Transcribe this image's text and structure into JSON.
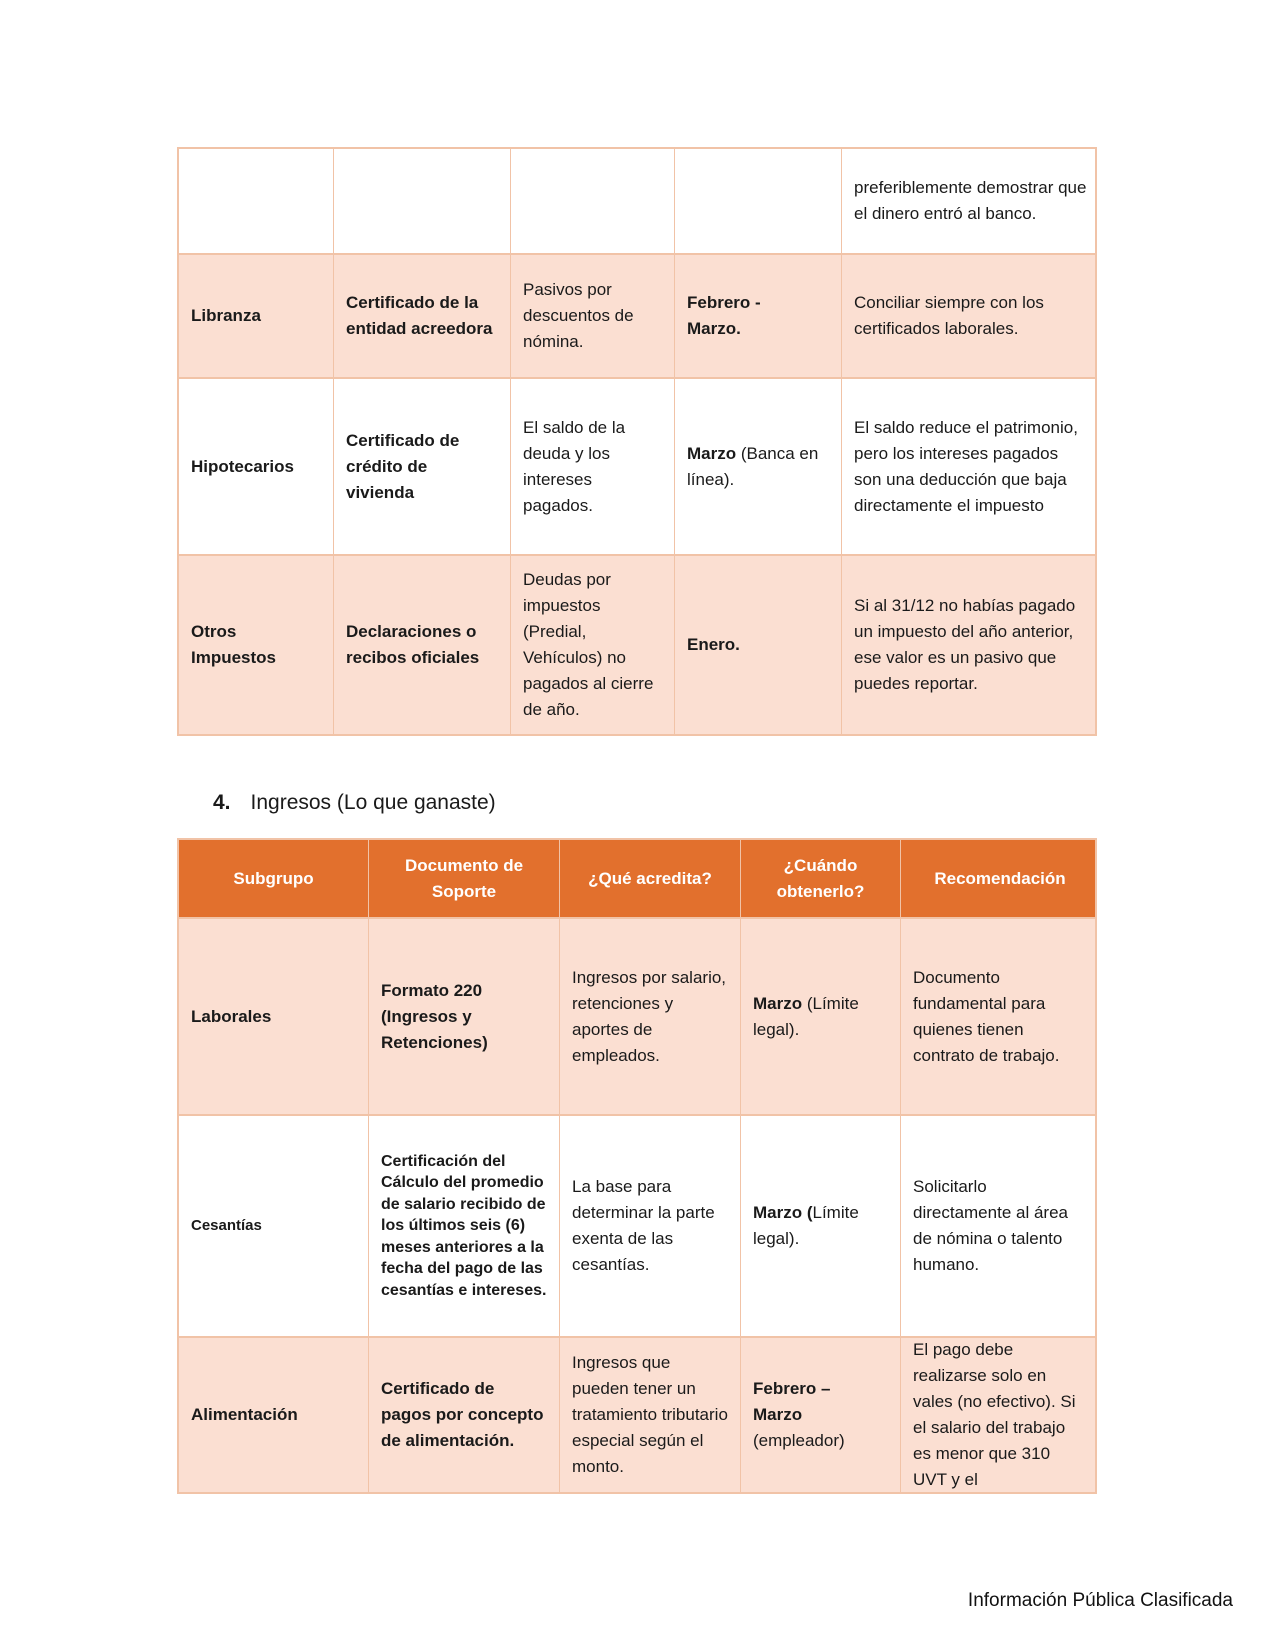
{
  "colors": {
    "header_orange": "#E2702D",
    "row_pink": "#FBDFD2",
    "table_border": "#F1C3A7",
    "text": "#1A1A1A"
  },
  "heading4": {
    "number": "4.",
    "label": "Ingresos (Lo que ganaste)"
  },
  "footer": "Información Pública Clasificada",
  "table1": {
    "rows": [
      {
        "cells": [
          [],
          [],
          [],
          [],
          [
            {
              "t": "preferiblemente demostrar que el dinero entró al banco.",
              "b": false
            }
          ]
        ]
      },
      {
        "cells": [
          [
            {
              "t": "Libranza",
              "b": true
            }
          ],
          [
            {
              "t": "Certificado de la entidad acreedora",
              "b": true
            }
          ],
          [
            {
              "t": "Pasivos por descuentos de nómina.",
              "b": false
            }
          ],
          [
            {
              "t": "Febrero -\nMarzo.",
              "b": true
            }
          ],
          [
            {
              "t": "Conciliar siempre con los certificados laborales.",
              "b": false
            }
          ]
        ]
      },
      {
        "cells": [
          [
            {
              "t": "Hipotecarios",
              "b": true
            }
          ],
          [
            {
              "t": "Certificado de crédito de vivienda",
              "b": true
            }
          ],
          [
            {
              "t": "El saldo de la deuda y los intereses pagados.",
              "b": false
            }
          ],
          [
            {
              "t": "Marzo",
              "b": true
            },
            {
              "t": " (Banca en línea).",
              "b": false
            }
          ],
          [
            {
              "t": "El saldo reduce el patrimonio, pero los intereses pagados son una deducción que baja directamente el impuesto",
              "b": false
            }
          ]
        ]
      },
      {
        "cells": [
          [
            {
              "t": "Otros Impuestos",
              "b": true
            }
          ],
          [
            {
              "t": "Declaraciones o recibos oficiales",
              "b": true
            }
          ],
          [
            {
              "t": "Deudas por impuestos (Predial, Vehículos) no pagados al cierre de año.",
              "b": false
            }
          ],
          [
            {
              "t": "Enero.",
              "b": true
            }
          ],
          [
            {
              "t": "Si al 31/12 no habías pagado un impuesto del año anterior, ese valor es un pasivo que puedes reportar.",
              "b": false
            }
          ]
        ]
      }
    ]
  },
  "table2": {
    "headers": [
      "Subgrupo",
      "Documento de Soporte",
      "¿Qué acredita?",
      "¿Cuándo obtenerlo?",
      "Recomendación"
    ],
    "rows": [
      {
        "cells": [
          [
            {
              "t": "Laborales",
              "b": true
            }
          ],
          [
            {
              "t": "Formato 220 (Ingresos y Retenciones)",
              "b": true
            }
          ],
          [
            {
              "t": "Ingresos por salario, retenciones y aportes de empleados.",
              "b": false
            }
          ],
          [
            {
              "t": "Marzo",
              "b": true
            },
            {
              "t": " (Límite legal).",
              "b": false
            }
          ],
          [
            {
              "t": "Documento fundamental para quienes tienen contrato de trabajo.",
              "b": false
            }
          ]
        ]
      },
      {
        "cells": [
          [
            {
              "t": "Cesantías",
              "b": true
            }
          ],
          [
            {
              "t": "Certificación del Cálculo del promedio de salario recibido de los últimos seis (6) meses anteriores a la fecha del pago de las cesantías e intereses.",
              "b": true
            }
          ],
          [
            {
              "t": "La base para determinar la parte exenta de las cesantías.",
              "b": false
            }
          ],
          [
            {
              "t": "Marzo (",
              "b": true
            },
            {
              "t": "Límite legal).",
              "b": false
            }
          ],
          [
            {
              "t": "Solicitarlo directamente al área de nómina o talento humano.",
              "b": false
            }
          ]
        ]
      },
      {
        "cells": [
          [
            {
              "t": "Alimentación",
              "b": true
            }
          ],
          [
            {
              "t": "Certificado de pagos por concepto de alimentación.",
              "b": true
            }
          ],
          [
            {
              "t": "Ingresos que pueden tener un tratamiento tributario especial según el monto.",
              "b": false
            }
          ],
          [
            {
              "t": "Febrero –\nMarzo",
              "b": true
            },
            {
              "t": "\n(empleador)",
              "b": false
            }
          ],
          [
            {
              "t": "El pago debe realizarse solo en vales (no efectivo). Si el salario del trabajo es menor que 310 UVT y el",
              "b": false
            }
          ]
        ]
      }
    ]
  }
}
